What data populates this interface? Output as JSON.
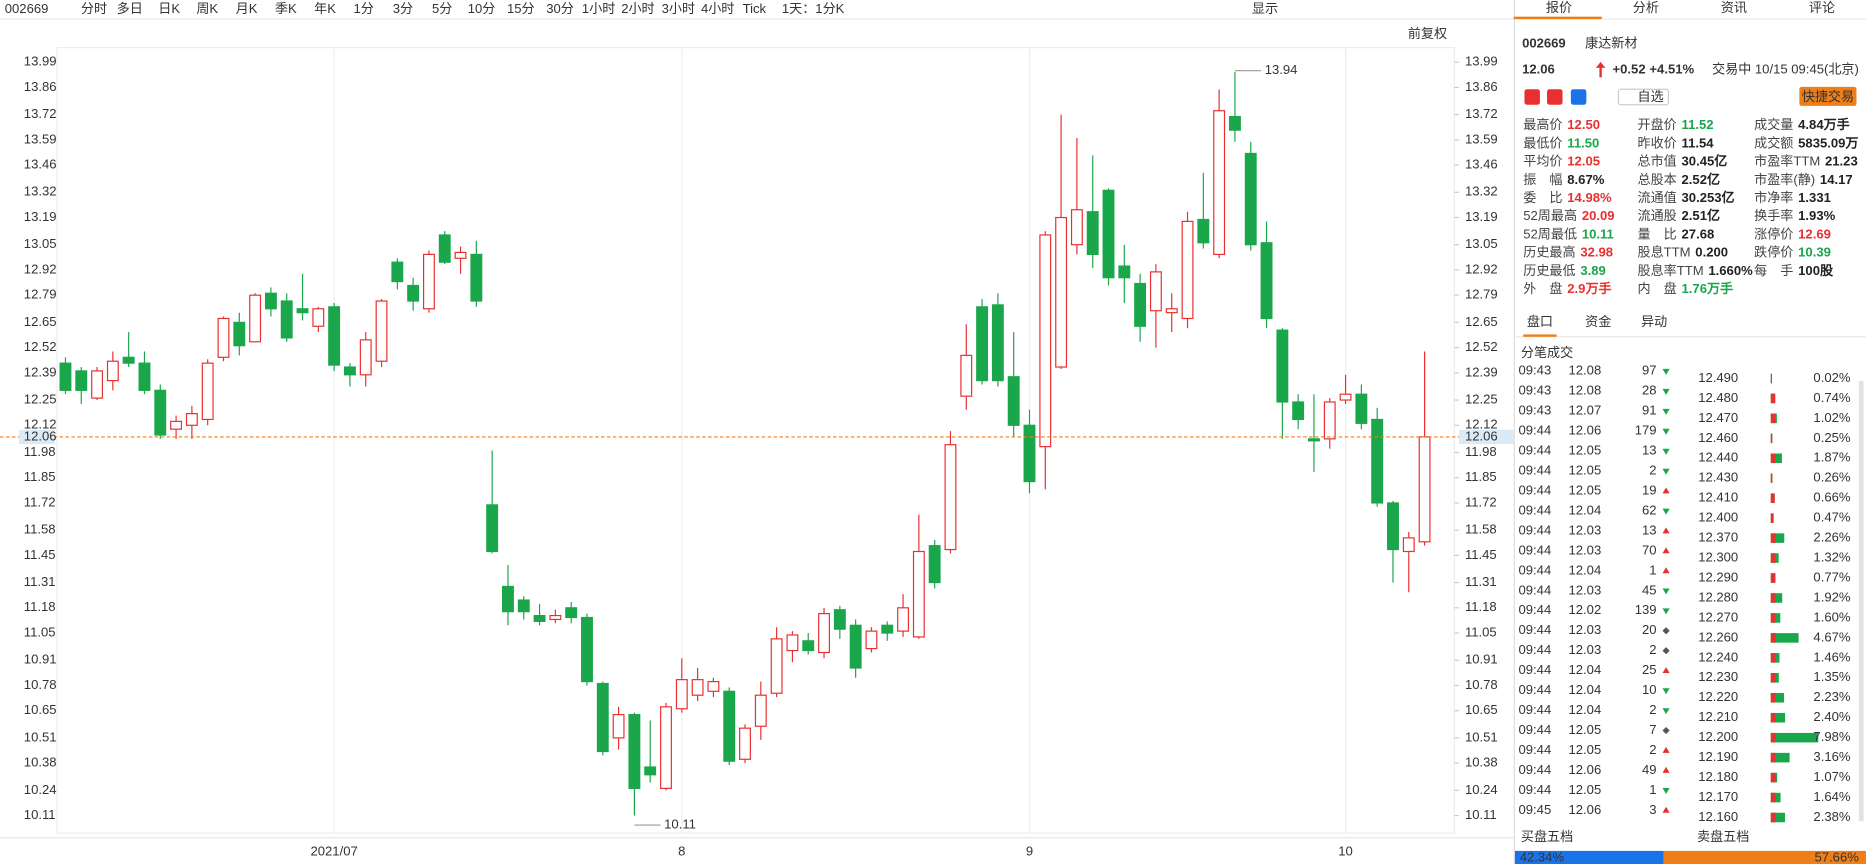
{
  "toolbar": {
    "code": "002669",
    "periods": [
      "分时",
      "多日",
      "日K",
      "周K",
      "月K",
      "季K",
      "年K",
      "1分",
      "3分",
      "5分",
      "10分",
      "15分",
      "30分",
      "1小时",
      "2小时",
      "3小时",
      "4小时",
      "Tick"
    ],
    "interval": "1天：1分K",
    "display": "显示",
    "adjust": "前复权"
  },
  "chart_data": {
    "type": "candlestick",
    "categories": [
      null,
      null,
      null,
      null,
      null,
      null,
      null,
      null,
      null,
      null,
      null,
      null,
      null,
      null,
      null,
      null,
      null,
      "2021/07",
      null,
      null,
      null,
      null,
      null,
      null,
      null,
      null,
      null,
      null,
      null,
      null,
      null,
      null,
      null,
      null,
      null,
      null,
      null,
      null,
      null,
      "8",
      null,
      null,
      null,
      null,
      null,
      null,
      null,
      null,
      null,
      null,
      null,
      null,
      null,
      null,
      null,
      null,
      null,
      null,
      null,
      null,
      null,
      "9",
      null,
      null,
      null,
      null,
      null,
      null,
      null,
      null,
      null,
      null,
      null,
      null,
      null,
      null,
      null,
      null,
      null,
      null,
      null,
      "10",
      null,
      null,
      null,
      null,
      null
    ],
    "open": [
      12.44,
      12.4,
      12.26,
      12.35,
      12.47,
      12.44,
      12.3,
      12.1,
      12.12,
      12.15,
      12.47,
      12.65,
      12.55,
      12.8,
      12.76,
      12.72,
      12.63,
      12.73,
      12.42,
      12.38,
      12.45,
      12.96,
      12.84,
      12.72,
      13.1,
      12.98,
      13.0,
      11.71,
      11.29,
      11.22,
      11.14,
      11.12,
      11.18,
      11.13,
      10.79,
      10.51,
      10.63,
      10.36,
      10.25,
      10.66,
      10.73,
      10.75,
      10.75,
      10.4,
      10.57,
      10.74,
      10.96,
      11.01,
      10.95,
      11.17,
      11.09,
      10.97,
      11.09,
      11.06,
      11.03,
      11.5,
      11.48,
      12.27,
      12.73,
      12.74,
      12.37,
      12.12,
      12.01,
      12.42,
      13.05,
      13.22,
      13.33,
      12.94,
      12.85,
      12.71,
      12.7,
      12.67,
      13.18,
      13.0,
      13.71,
      13.52,
      13.06,
      12.61,
      12.24,
      12.05,
      12.05,
      12.25,
      12.28,
      12.15,
      11.72,
      11.47,
      11.52
    ],
    "high": [
      12.47,
      12.42,
      12.42,
      12.5,
      12.6,
      12.5,
      12.33,
      12.17,
      12.22,
      12.46,
      12.68,
      12.7,
      12.8,
      12.83,
      12.8,
      12.9,
      12.73,
      12.75,
      12.44,
      12.6,
      12.77,
      12.98,
      12.88,
      13.02,
      13.12,
      13.04,
      13.07,
      11.99,
      11.4,
      11.24,
      11.2,
      11.17,
      11.21,
      11.15,
      10.8,
      10.67,
      10.64,
      10.6,
      10.69,
      10.92,
      10.87,
      10.82,
      10.77,
      10.58,
      10.8,
      11.08,
      11.06,
      11.05,
      11.18,
      11.19,
      11.12,
      11.08,
      11.11,
      11.25,
      11.66,
      11.53,
      12.09,
      12.64,
      12.77,
      12.8,
      12.6,
      12.2,
      13.12,
      13.72,
      13.6,
      13.51,
      13.34,
      13.05,
      12.9,
      12.95,
      12.8,
      13.22,
      13.42,
      13.85,
      13.94,
      13.58,
      13.17,
      12.62,
      12.28,
      12.28,
      12.26,
      12.38,
      12.33,
      12.21,
      11.73,
      11.57,
      12.5
    ],
    "low": [
      12.28,
      12.23,
      12.25,
      12.3,
      12.42,
      12.28,
      12.05,
      12.05,
      12.05,
      12.12,
      12.45,
      12.48,
      12.55,
      12.68,
      12.55,
      12.66,
      12.6,
      12.4,
      12.32,
      12.32,
      12.42,
      12.82,
      12.71,
      12.7,
      12.95,
      12.9,
      12.73,
      11.46,
      11.09,
      11.12,
      11.09,
      11.1,
      11.1,
      10.78,
      10.42,
      10.45,
      10.11,
      10.28,
      10.24,
      10.64,
      10.7,
      10.72,
      10.37,
      10.38,
      10.5,
      10.72,
      10.9,
      10.94,
      10.92,
      11.02,
      10.82,
      10.95,
      11.01,
      11.03,
      11.02,
      11.28,
      11.46,
      12.2,
      12.33,
      12.32,
      12.06,
      11.77,
      11.79,
      12.41,
      13.0,
      12.93,
      12.84,
      12.75,
      12.55,
      12.52,
      12.6,
      12.62,
      13.03,
      12.98,
      13.58,
      13.02,
      12.62,
      12.05,
      12.1,
      11.88,
      12.0,
      12.23,
      12.1,
      11.7,
      11.31,
      11.26,
      11.5
    ],
    "close": [
      12.3,
      12.3,
      12.4,
      12.45,
      12.44,
      12.3,
      12.07,
      12.14,
      12.18,
      12.44,
      12.67,
      12.53,
      12.79,
      12.72,
      12.57,
      12.7,
      12.72,
      12.43,
      12.38,
      12.56,
      12.76,
      12.86,
      12.76,
      13.0,
      12.96,
      13.01,
      12.76,
      11.47,
      11.16,
      11.16,
      11.11,
      11.14,
      11.13,
      10.8,
      10.44,
      10.63,
      10.25,
      10.32,
      10.67,
      10.81,
      10.81,
      10.8,
      10.39,
      10.56,
      10.73,
      11.02,
      11.04,
      10.96,
      11.15,
      11.07,
      10.87,
      11.06,
      11.05,
      11.18,
      11.47,
      11.31,
      12.02,
      12.48,
      12.35,
      12.35,
      12.12,
      11.83,
      13.1,
      13.19,
      13.23,
      13.0,
      12.88,
      12.88,
      12.63,
      12.91,
      12.72,
      13.17,
      13.06,
      13.74,
      13.64,
      13.05,
      12.67,
      12.24,
      12.15,
      12.04,
      12.24,
      12.28,
      12.13,
      11.72,
      11.48,
      11.54,
      12.06
    ],
    "up_color": "#e93030",
    "down_color": "#1aa64a",
    "ylim": [
      10.02,
      14.065
    ],
    "yticks": [
      13.99,
      13.86,
      13.72,
      13.59,
      13.46,
      13.32,
      13.19,
      13.05,
      12.92,
      12.79,
      12.65,
      12.52,
      12.39,
      12.25,
      12.12,
      11.98,
      11.85,
      11.72,
      11.58,
      11.45,
      11.31,
      11.18,
      11.05,
      10.91,
      10.78,
      10.65,
      10.51,
      10.38,
      10.24,
      10.11
    ],
    "price_line": 12.06,
    "annotations": [
      13.94,
      10.11
    ]
  },
  "quote": {
    "tabs": [
      "报价",
      "分析",
      "资讯",
      "评论"
    ],
    "code": "002669",
    "name": "康达新材",
    "price": "12.06",
    "change": "+0.52",
    "change_pct": "+4.51%",
    "status": "交易中 10/15 09:45(北京)",
    "watch": "自选",
    "trade": "快捷交易",
    "stats": [
      [
        {
          "label": "最高价",
          "value": "12.50",
          "color": "#e93030"
        },
        {
          "label": "开盘价",
          "value": "11.52",
          "color": "#1aa64a"
        },
        {
          "label": "成交量",
          "value": "4.84万手",
          "color": "#222"
        }
      ],
      [
        {
          "label": "最低价",
          "value": "11.50",
          "color": "#1aa64a"
        },
        {
          "label": "昨收价",
          "value": "11.54",
          "color": "#222"
        },
        {
          "label": "成交额",
          "value": "5835.09万",
          "color": "#222"
        }
      ],
      [
        {
          "label": "平均价",
          "value": "12.05",
          "color": "#e93030"
        },
        {
          "label": "总市值",
          "value": "30.45亿",
          "color": "#222"
        },
        {
          "label": "市盈率TTM",
          "value": "21.23",
          "color": "#222"
        }
      ],
      [
        {
          "label": "振　幅",
          "value": "8.67%",
          "color": "#222"
        },
        {
          "label": "总股本",
          "value": "2.52亿",
          "color": "#222"
        },
        {
          "label": "市盈率(静)",
          "value": "14.17",
          "color": "#222"
        }
      ],
      [
        {
          "label": "委　比",
          "value": "14.98%",
          "color": "#e93030"
        },
        {
          "label": "流通值",
          "value": "30.253亿",
          "color": "#222"
        },
        {
          "label": "市净率",
          "value": "1.331",
          "color": "#222"
        }
      ],
      [
        {
          "label": "52周最高",
          "value": "20.09",
          "color": "#e93030"
        },
        {
          "label": "流通股",
          "value": "2.51亿",
          "color": "#222"
        },
        {
          "label": "换手率",
          "value": "1.93%",
          "color": "#222"
        }
      ],
      [
        {
          "label": "52周最低",
          "value": "10.11",
          "color": "#1aa64a"
        },
        {
          "label": "量　比",
          "value": "27.68",
          "color": "#222"
        },
        {
          "label": "涨停价",
          "value": "12.69",
          "color": "#e93030"
        }
      ],
      [
        {
          "label": "历史最高",
          "value": "32.98",
          "color": "#e93030"
        },
        {
          "label": "股息TTM",
          "value": "0.200",
          "color": "#222"
        },
        {
          "label": "跌停价",
          "value": "10.39",
          "color": "#1aa64a"
        }
      ],
      [
        {
          "label": "历史最低",
          "value": "3.89",
          "color": "#1aa64a"
        },
        {
          "label": "股息率TTM",
          "value": "1.660%",
          "color": "#222"
        },
        {
          "label": "每　手",
          "value": "100股",
          "color": "#222"
        }
      ],
      [
        {
          "label": "外　盘",
          "value": "2.9万手",
          "color": "#e93030"
        },
        {
          "label": "内　盘",
          "value": "1.76万手",
          "color": "#1aa64a"
        }
      ]
    ],
    "sub_tabs": [
      "盘口",
      "资金",
      "异动"
    ],
    "ticks_title": "分笔成交",
    "trades": [
      {
        "time": "09:43",
        "price": "12.08",
        "volume": 97,
        "color": "#1aa64a"
      },
      {
        "time": "09:43",
        "price": "12.08",
        "volume": 28,
        "color": "#1aa64a"
      },
      {
        "time": "09:43",
        "price": "12.07",
        "volume": 91,
        "color": "#1aa64a"
      },
      {
        "time": "09:44",
        "price": "12.06",
        "volume": 179,
        "color": "#1aa64a"
      },
      {
        "time": "09:44",
        "price": "12.05",
        "volume": 13,
        "color": "#1aa64a"
      },
      {
        "time": "09:44",
        "price": "12.05",
        "volume": 2,
        "color": "#1aa64a"
      },
      {
        "time": "09:44",
        "price": "12.05",
        "volume": 19,
        "color": "#e93030"
      },
      {
        "time": "09:44",
        "price": "12.04",
        "volume": 62,
        "color": "#1aa64a"
      },
      {
        "time": "09:44",
        "price": "12.03",
        "volume": 13,
        "color": "#e93030"
      },
      {
        "time": "09:44",
        "price": "12.03",
        "volume": 70,
        "color": "#e93030"
      },
      {
        "time": "09:44",
        "price": "12.04",
        "volume": 1,
        "color": "#e93030"
      },
      {
        "time": "09:44",
        "price": "12.03",
        "volume": 45,
        "color": "#1aa64a"
      },
      {
        "time": "09:44",
        "price": "12.02",
        "volume": 139,
        "color": "#1aa64a"
      },
      {
        "time": "09:44",
        "price": "12.03",
        "volume": 20,
        "color": "#555"
      },
      {
        "time": "09:44",
        "price": "12.03",
        "volume": 2,
        "color": "#555"
      },
      {
        "time": "09:44",
        "price": "12.04",
        "volume": 25,
        "color": "#e93030"
      },
      {
        "time": "09:44",
        "price": "12.04",
        "volume": 10,
        "color": "#1aa64a"
      },
      {
        "time": "09:44",
        "price": "12.04",
        "volume": 2,
        "color": "#1aa64a"
      },
      {
        "time": "09:44",
        "price": "12.05",
        "volume": 7,
        "color": "#555"
      },
      {
        "time": "09:44",
        "price": "12.05",
        "volume": 2,
        "color": "#e93030"
      },
      {
        "time": "09:44",
        "price": "12.06",
        "volume": 49,
        "color": "#e93030"
      },
      {
        "time": "09:44",
        "price": "12.05",
        "volume": 1,
        "color": "#1aa64a"
      },
      {
        "time": "09:45",
        "price": "12.06",
        "volume": 3,
        "color": "#e93030"
      }
    ],
    "depth": [
      {
        "price": "12.490",
        "pct": {
          "value": 0.02,
          "label": "0.02%"
        }
      },
      {
        "price": "12.480",
        "pct": {
          "value": 0.74,
          "label": "0.74%"
        }
      },
      {
        "price": "12.470",
        "pct": {
          "value": 1.02,
          "label": "1.02%"
        }
      },
      {
        "price": "12.460",
        "pct": {
          "value": 0.25,
          "label": "0.25%"
        }
      },
      {
        "price": "12.440",
        "pct": {
          "value": 1.87,
          "label": "1.87%"
        }
      },
      {
        "price": "12.430",
        "pct": {
          "value": 0.26,
          "label": "0.26%"
        }
      },
      {
        "price": "12.410",
        "pct": {
          "value": 0.66,
          "label": "0.66%"
        }
      },
      {
        "price": "12.400",
        "pct": {
          "value": 0.47,
          "label": "0.47%"
        }
      },
      {
        "price": "12.370",
        "pct": {
          "value": 2.26,
          "label": "2.26%"
        }
      },
      {
        "price": "12.300",
        "pct": {
          "value": 1.32,
          "label": "1.32%"
        }
      },
      {
        "price": "12.290",
        "pct": {
          "value": 0.77,
          "label": "0.77%"
        }
      },
      {
        "price": "12.280",
        "pct": {
          "value": 1.92,
          "label": "1.92%"
        }
      },
      {
        "price": "12.270",
        "pct": {
          "value": 1.6,
          "label": "1.60%"
        }
      },
      {
        "price": "12.260",
        "pct": {
          "value": 4.67,
          "label": "4.67%"
        }
      },
      {
        "price": "12.240",
        "pct": {
          "value": 1.46,
          "label": "1.46%"
        }
      },
      {
        "price": "12.230",
        "pct": {
          "value": 1.35,
          "label": "1.35%"
        }
      },
      {
        "price": "12.220",
        "pct": {
          "value": 2.23,
          "label": "2.23%"
        }
      },
      {
        "price": "12.210",
        "pct": {
          "value": 2.4,
          "label": "2.40%"
        }
      },
      {
        "price": "12.200",
        "pct": {
          "value": 7.98,
          "label": "7.98%"
        }
      },
      {
        "price": "12.190",
        "pct": {
          "value": 3.16,
          "label": "3.16%"
        }
      },
      {
        "price": "12.180",
        "pct": {
          "value": 1.07,
          "label": "1.07%"
        }
      },
      {
        "price": "12.170",
        "pct": {
          "value": 1.64,
          "label": "1.64%"
        }
      },
      {
        "price": "12.160",
        "pct": {
          "value": 2.38,
          "label": "2.38%"
        }
      }
    ],
    "buy_label": "买盘五档",
    "sell_label": "卖盘五档",
    "buy_pct": {
      "value": 42.34,
      "label": "42.34%"
    },
    "sell_pct": {
      "value": 57.66,
      "label": "57.66%"
    }
  }
}
